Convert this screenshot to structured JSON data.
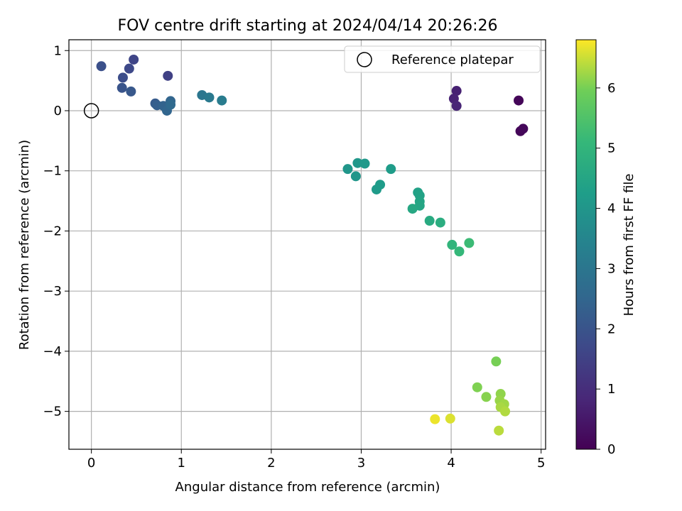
{
  "chart_data": {
    "type": "scatter",
    "title": "FOV centre drift starting at 2024/04/14 20:26:26",
    "xlabel": "Angular distance from reference (arcmin)",
    "ylabel": "Rotation from reference (arcmin)",
    "xlim": [
      -0.25,
      5.05
    ],
    "ylim": [
      -5.63,
      1.18
    ],
    "xticks": [
      0,
      1,
      2,
      3,
      4,
      5
    ],
    "xtick_labels": [
      "0",
      "1",
      "2",
      "3",
      "4",
      "5"
    ],
    "yticks": [
      1,
      0,
      -1,
      -2,
      -3,
      -4,
      -5
    ],
    "ytick_labels": [
      "1",
      "0",
      "−1",
      "−2",
      "−3",
      "−4",
      "−5"
    ],
    "grid": true,
    "legend": {
      "position": "top-right",
      "entries": [
        "Reference platepar"
      ]
    },
    "reference_point": {
      "x": 0,
      "y": 0
    },
    "colorbar": {
      "label": "Hours from first FF file",
      "colormap": "viridis",
      "range": [
        0,
        6.8
      ],
      "ticks": [
        0,
        1,
        2,
        3,
        4,
        5,
        6
      ],
      "tick_labels": [
        "0",
        "1",
        "2",
        "3",
        "4",
        "5",
        "6"
      ]
    },
    "points": [
      {
        "x": 4.75,
        "y": 0.17,
        "h": 0.1
      },
      {
        "x": 4.77,
        "y": -0.34,
        "h": 0.1
      },
      {
        "x": 4.8,
        "y": -0.3,
        "h": 0.15
      },
      {
        "x": 4.06,
        "y": 0.33,
        "h": 0.7
      },
      {
        "x": 4.03,
        "y": 0.2,
        "h": 0.75
      },
      {
        "x": 4.06,
        "y": 0.08,
        "h": 0.8
      },
      {
        "x": 0.85,
        "y": 0.58,
        "h": 1.5
      },
      {
        "x": 0.47,
        "y": 0.85,
        "h": 1.6
      },
      {
        "x": 0.42,
        "y": 0.7,
        "h": 1.7
      },
      {
        "x": 0.35,
        "y": 0.55,
        "h": 1.8
      },
      {
        "x": 0.11,
        "y": 0.74,
        "h": 1.9
      },
      {
        "x": 0.34,
        "y": 0.38,
        "h": 2.0
      },
      {
        "x": 0.44,
        "y": 0.32,
        "h": 2.1
      },
      {
        "x": 0.71,
        "y": 0.12,
        "h": 2.2
      },
      {
        "x": 0.73,
        "y": 0.09,
        "h": 2.3
      },
      {
        "x": 0.8,
        "y": 0.08,
        "h": 2.4
      },
      {
        "x": 0.84,
        "y": 0.0,
        "h": 2.5
      },
      {
        "x": 0.88,
        "y": 0.16,
        "h": 2.5
      },
      {
        "x": 0.88,
        "y": 0.1,
        "h": 2.6
      },
      {
        "x": 1.23,
        "y": 0.26,
        "h": 3.0
      },
      {
        "x": 1.31,
        "y": 0.22,
        "h": 3.1
      },
      {
        "x": 1.45,
        "y": 0.17,
        "h": 3.2
      },
      {
        "x": 2.85,
        "y": -0.97,
        "h": 4.0
      },
      {
        "x": 2.94,
        "y": -1.09,
        "h": 4.0
      },
      {
        "x": 2.96,
        "y": -0.87,
        "h": 4.05
      },
      {
        "x": 3.04,
        "y": -0.88,
        "h": 4.1
      },
      {
        "x": 3.17,
        "y": -1.31,
        "h": 4.15
      },
      {
        "x": 3.21,
        "y": -1.23,
        "h": 4.2
      },
      {
        "x": 3.33,
        "y": -0.97,
        "h": 4.2
      },
      {
        "x": 3.63,
        "y": -1.36,
        "h": 4.35
      },
      {
        "x": 3.65,
        "y": -1.41,
        "h": 4.4
      },
      {
        "x": 3.65,
        "y": -1.51,
        "h": 4.45
      },
      {
        "x": 3.65,
        "y": -1.58,
        "h": 4.5
      },
      {
        "x": 3.57,
        "y": -1.63,
        "h": 4.55
      },
      {
        "x": 3.76,
        "y": -1.83,
        "h": 4.65
      },
      {
        "x": 3.88,
        "y": -1.86,
        "h": 4.75
      },
      {
        "x": 4.01,
        "y": -2.23,
        "h": 5.0
      },
      {
        "x": 4.09,
        "y": -2.34,
        "h": 5.1
      },
      {
        "x": 4.2,
        "y": -2.2,
        "h": 5.2
      },
      {
        "x": 4.5,
        "y": -4.17,
        "h": 6.0
      },
      {
        "x": 4.29,
        "y": -4.6,
        "h": 6.05
      },
      {
        "x": 4.39,
        "y": -4.76,
        "h": 6.1
      },
      {
        "x": 4.55,
        "y": -4.71,
        "h": 6.15
      },
      {
        "x": 4.54,
        "y": -4.82,
        "h": 6.2
      },
      {
        "x": 4.59,
        "y": -4.88,
        "h": 6.25
      },
      {
        "x": 4.55,
        "y": -4.93,
        "h": 6.3
      },
      {
        "x": 4.6,
        "y": -5.0,
        "h": 6.35
      },
      {
        "x": 4.53,
        "y": -5.32,
        "h": 6.4
      },
      {
        "x": 3.99,
        "y": -5.12,
        "h": 6.6
      },
      {
        "x": 3.82,
        "y": -5.13,
        "h": 6.7
      }
    ]
  }
}
